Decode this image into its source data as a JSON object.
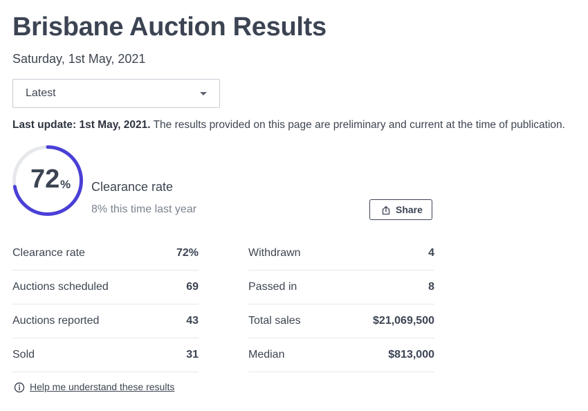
{
  "header": {
    "title": "Brisbane Auction Results",
    "date": "Saturday, 1st May, 2021"
  },
  "select": {
    "value": "Latest"
  },
  "update": {
    "bold": "Last update: 1st May, 2021.",
    "text": " The results provided on this page are preliminary and current at the time of publication."
  },
  "gauge": {
    "value": "72",
    "unit": "%",
    "fraction": 0.72,
    "track_color": "#e6e8ec",
    "fill_color": "#4a3fd6"
  },
  "summary": {
    "label": "Clearance rate",
    "last_year": "8% this time last year"
  },
  "share": {
    "label": "Share"
  },
  "stats_left": [
    {
      "label": "Clearance rate",
      "value": "72%"
    },
    {
      "label": "Auctions scheduled",
      "value": "69"
    },
    {
      "label": "Auctions reported",
      "value": "43"
    },
    {
      "label": "Sold",
      "value": "31"
    }
  ],
  "stats_right": [
    {
      "label": "Withdrawn",
      "value": "4"
    },
    {
      "label": "Passed in",
      "value": "8"
    },
    {
      "label": "Total sales",
      "value": "$21,069,500"
    },
    {
      "label": "Median",
      "value": "$813,000"
    }
  ],
  "help": {
    "label": "Help me understand these results"
  }
}
